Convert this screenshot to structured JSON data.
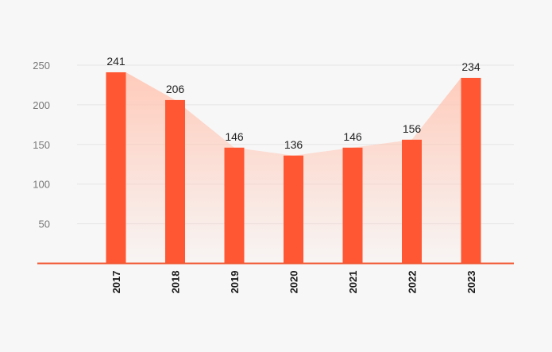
{
  "chart_data": {
    "type": "bar",
    "categories": [
      "2017",
      "2018",
      "2019",
      "2020",
      "2021",
      "2022",
      "2023"
    ],
    "values": [
      241,
      206,
      146,
      136,
      146,
      156,
      234
    ],
    "title": "",
    "xlabel": "",
    "ylabel": "",
    "ylim": [
      0,
      250
    ],
    "yticks": [
      50,
      100,
      150,
      200,
      250
    ],
    "grid": true,
    "legend": "none",
    "data_labels": true,
    "area_overlay": true,
    "colors": {
      "bar": "#ff5733",
      "area": "#ffc9b8",
      "baseline": "#f15a35",
      "grid": "#e6e6e6",
      "background": "#f7f7f7"
    }
  }
}
